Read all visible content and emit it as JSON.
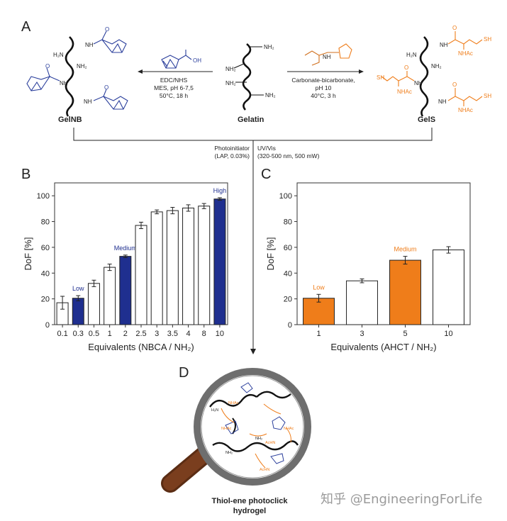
{
  "panel_a": {
    "label": "A",
    "left_reaction": {
      "conditions": [
        "EDC/NHS",
        "MES, pH 6-7,5",
        "50°C, 18 h"
      ],
      "reagent_acid_label": "OH"
    },
    "right_reaction": {
      "conditions": [
        "Carbonate-bicarbonate,",
        "pH 10",
        "40°C, 3 h"
      ]
    },
    "products": {
      "left": "GelNB",
      "center": "Gelatin",
      "right": "GelS"
    },
    "groups": {
      "amine": "NH₂",
      "amine_left": "H₂N",
      "amide_nh": "NH",
      "amide_hn": "HN",
      "nhac": "NHAc",
      "sh": "SH",
      "o": "O",
      "n": "N"
    }
  },
  "crosslink": {
    "left_text": [
      "Photoinitiator",
      "(LAP, 0.03%)"
    ],
    "right_text": [
      "UV/Vis",
      "(320-500 nm, 500 mW)"
    ]
  },
  "chart_data": [
    {
      "panel": "B",
      "type": "bar",
      "categories": [
        "0.1",
        "0.3",
        "0.5",
        "1",
        "2",
        "2.5",
        "3",
        "3.5",
        "4",
        "8",
        "10"
      ],
      "values": [
        17,
        20.5,
        32,
        44.5,
        53,
        77,
        87.5,
        88.5,
        90.5,
        92,
        97.5
      ],
      "errors": [
        5,
        2,
        2.5,
        2.5,
        1,
        2.5,
        1.5,
        2.5,
        2.5,
        2,
        1
      ],
      "highlighted": [
        "0.3",
        "2",
        "10"
      ],
      "annotations": {
        "0.3": "Low",
        "2": "Medium",
        "10": "High"
      },
      "xlabel": "Equivalents (NBCA / NH₂)",
      "ylabel": "DoF [%]",
      "ylim": [
        0,
        110
      ],
      "yticks": [
        0,
        20,
        40,
        60,
        80,
        100
      ],
      "highlight_color": "#1f2f8f"
    },
    {
      "panel": "C",
      "type": "bar",
      "categories": [
        "1",
        "3",
        "5",
        "10"
      ],
      "values": [
        20.5,
        34,
        50,
        58
      ],
      "errors": [
        3,
        1.5,
        3,
        2.5
      ],
      "highlighted": [
        "1",
        "5"
      ],
      "annotations": {
        "1": "Low",
        "5": "Medium"
      },
      "xlabel": "Equivalents (AHCT / NH₂)",
      "ylabel": "DoF [%]",
      "ylim": [
        0,
        110
      ],
      "yticks": [
        0,
        20,
        40,
        60,
        80,
        100
      ],
      "highlight_color": "#ef7d1a"
    }
  ],
  "panel_d": {
    "label": "D",
    "caption": [
      "Thiol-ene photoclick",
      "hydrogel"
    ]
  },
  "watermark": "知乎 @EngineeringForLife",
  "colors": {
    "blue": "#1f2f8f",
    "orange": "#ef7d1a",
    "magnifier_rim": "#6e6e6e",
    "magnifier_handle": "#7a3e1e"
  }
}
